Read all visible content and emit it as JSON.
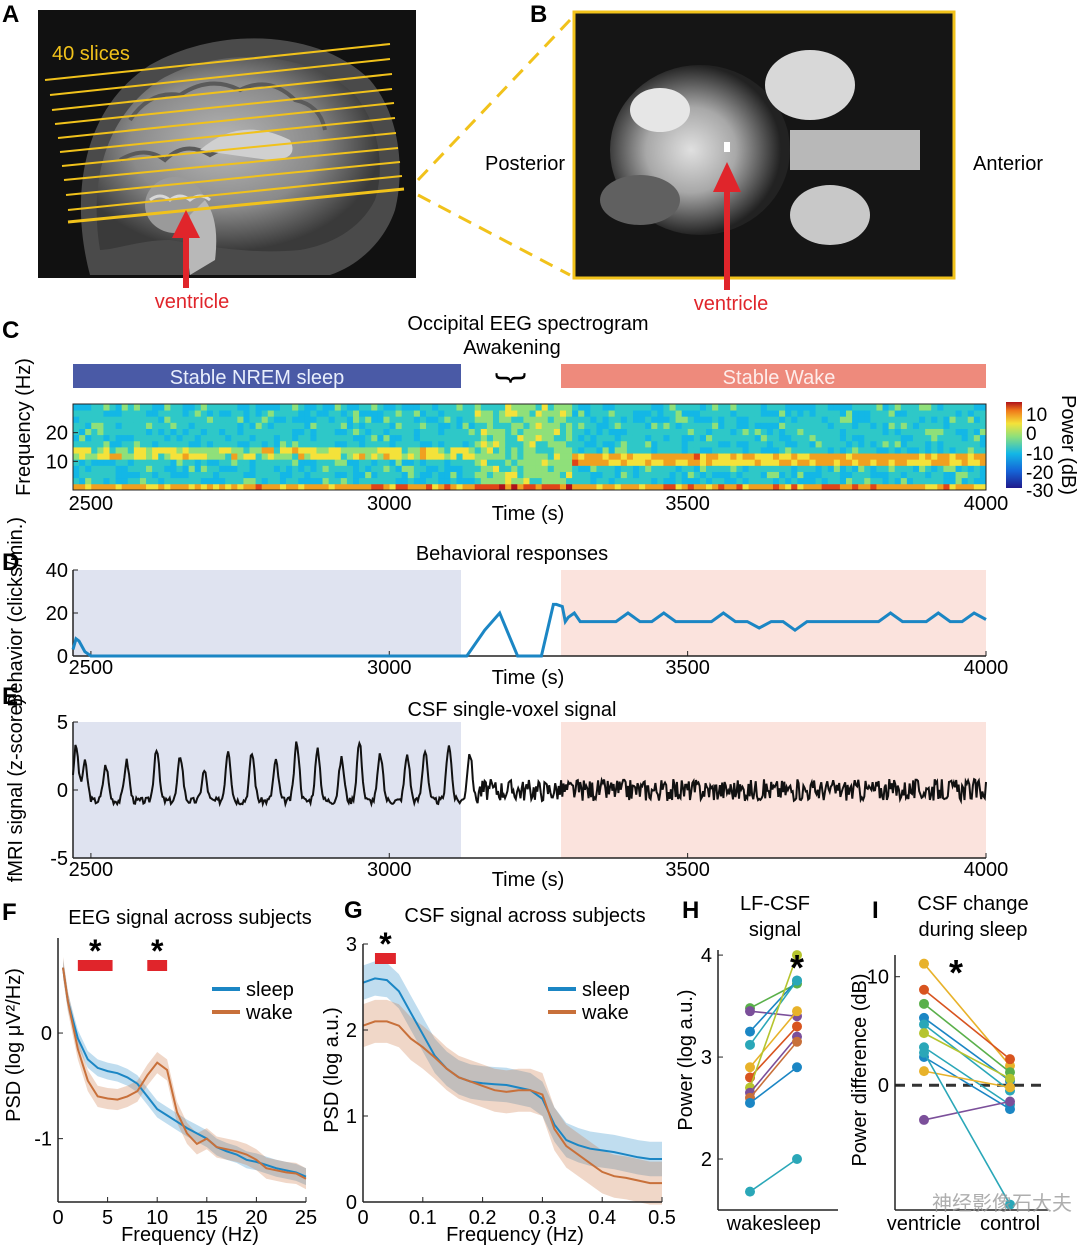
{
  "panel_a": {
    "letter": "A",
    "slices_label": "40 slices",
    "arrow_label": "ventricle",
    "colors": {
      "slices": "#f1c21b",
      "arrow": "#e0252b"
    }
  },
  "panel_b": {
    "letter": "B",
    "posterior_label": "Posterior",
    "anterior_label": "Anterior",
    "arrow_label": "ventricle"
  },
  "panel_c": {
    "letter": "C",
    "title": "Occipital EEG spectrogram",
    "awakening_label": "Awakening",
    "nrem_bar_label": "Stable NREM sleep",
    "wake_bar_label": "Stable Wake",
    "colors": {
      "nrem": "#4a5aa6",
      "wake": "#ee8a7c"
    },
    "ylabel": "Frequency (Hz)",
    "xlabel": "Time (s)",
    "colorbar_label": "Power (dB)",
    "colorbar_ticks": [
      "10",
      "0",
      "-10",
      "-20",
      "-30"
    ]
  },
  "panel_d": {
    "letter": "D",
    "title": "Behavioral responses",
    "ylabel": "Behavior (clicks/min.)",
    "xlabel": "Time (s)"
  },
  "panel_e": {
    "letter": "E",
    "title": "CSF single-voxel signal",
    "ylabel": "fMRI signal (z-score)",
    "xlabel": "Time (s)"
  },
  "panel_f": {
    "letter": "F",
    "title": "EEG signal across subjects",
    "ylabel": "PSD (log μV²/Hz)",
    "xlabel": "Frequency (Hz)"
  },
  "panel_g": {
    "letter": "G",
    "title": "CSF signal across subjects",
    "ylabel": "PSD (log a.u.)",
    "xlabel": "Frequency (Hz)"
  },
  "panel_h": {
    "letter": "H",
    "title_line1": "LF-CSF",
    "title_line2": "signal",
    "ylabel": "Power (log a.u.)"
  },
  "panel_i": {
    "letter": "I",
    "title_line1": "CSF change",
    "title_line2": "during sleep",
    "ylabel": "Power difference (dB)"
  },
  "significance_marker": "*",
  "watermark": "神经影像石大夫",
  "chart_data": [
    {
      "id": "C",
      "type": "heatmap",
      "title": "Occipital EEG spectrogram",
      "xlabel": "Time (s)",
      "ylabel": "Frequency (Hz)",
      "xlim": [
        2470,
        4000
      ],
      "ylim": [
        0,
        30
      ],
      "xticks": [
        2500,
        3000,
        3500,
        4000
      ],
      "yticks": [
        10,
        20
      ],
      "clim": [
        -30,
        10
      ],
      "bands": [
        {
          "name": "Stable NREM sleep",
          "range": [
            2470,
            3140
          ]
        },
        {
          "name": "Awakening",
          "range": [
            3140,
            3310
          ]
        },
        {
          "name": "Stable Wake",
          "range": [
            3310,
            4000
          ]
        }
      ]
    },
    {
      "id": "D",
      "type": "line",
      "title": "Behavioral responses",
      "xlabel": "Time (s)",
      "ylabel": "Behavior (clicks/min.)",
      "xlim": [
        2470,
        4000
      ],
      "ylim": [
        0,
        40
      ],
      "xticks": [
        2500,
        3000,
        3500,
        4000
      ],
      "yticks": [
        0,
        20,
        40
      ],
      "color": "#1b86c4",
      "x": [
        2470,
        2475,
        2480,
        2490,
        2500,
        2520,
        2600,
        2700,
        2800,
        2900,
        3000,
        3100,
        3130,
        3160,
        3185,
        3200,
        3215,
        3230,
        3255,
        3275,
        3280,
        3290,
        3295,
        3300,
        3310,
        3320,
        3340,
        3360,
        3380,
        3400,
        3420,
        3440,
        3460,
        3480,
        3500,
        3520,
        3540,
        3560,
        3580,
        3600,
        3620,
        3640,
        3660,
        3680,
        3700,
        3720,
        3740,
        3760,
        3780,
        3800,
        3820,
        3840,
        3860,
        3880,
        3900,
        3920,
        3940,
        3960,
        3980,
        4000
      ],
      "y": [
        3,
        8,
        7,
        2,
        0,
        0,
        0,
        0,
        0,
        0,
        0,
        0,
        0,
        12,
        20,
        10,
        0,
        0,
        0,
        24,
        24,
        23,
        16,
        18,
        20,
        16,
        16,
        16,
        16,
        20,
        16,
        16,
        20,
        16,
        16,
        16,
        16,
        20,
        16,
        16,
        13,
        16,
        16,
        12,
        16,
        16,
        16,
        16,
        16,
        16,
        16,
        20,
        16,
        16,
        16,
        20,
        16,
        16,
        20,
        17
      ]
    },
    {
      "id": "E",
      "type": "line",
      "title": "CSF single-voxel signal",
      "xlabel": "Time (s)",
      "ylabel": "fMRI signal (z-score)",
      "xlim": [
        2470,
        4000
      ],
      "ylim": [
        -5,
        5
      ],
      "xticks": [
        2500,
        3000,
        3500,
        4000
      ],
      "yticks": [
        -5,
        0,
        5
      ],
      "color": "#111111",
      "peaks_x": [
        2475,
        2490,
        2525,
        2560,
        2610,
        2650,
        2690,
        2730,
        2770,
        2810,
        2845,
        2880,
        2920,
        2950,
        2985,
        3030,
        3060,
        3100,
        3135
      ],
      "peaks_y": [
        3.2,
        2.0,
        1.8,
        2.1,
        3.1,
        2.5,
        1.4,
        3.0,
        2.7,
        2.1,
        3.5,
        2.9,
        2.3,
        3.5,
        2.6,
        2.6,
        3.0,
        3.4,
        2.7
      ],
      "wake_range": [
        3150,
        4000
      ],
      "wake_amplitude": 0.8
    },
    {
      "id": "F",
      "type": "line",
      "title": "EEG signal across subjects",
      "xlabel": "Frequency (Hz)",
      "ylabel": "PSD (log μV²/Hz)",
      "xlim": [
        0,
        25
      ],
      "ylim": [
        -1.6,
        0.9
      ],
      "xticks": [
        0,
        5,
        10,
        15,
        20,
        25
      ],
      "yticks": [
        -1,
        0
      ],
      "legend": "top-right",
      "x": [
        0.5,
        1,
        2,
        3,
        4,
        5,
        6,
        7,
        8,
        9,
        10,
        11,
        12,
        13,
        14,
        15,
        16,
        17,
        18,
        19,
        20,
        21,
        22,
        23,
        24,
        25
      ],
      "series": [
        {
          "name": "sleep",
          "color": "#1b86c4",
          "values": [
            0.62,
            0.3,
            -0.05,
            -0.25,
            -0.33,
            -0.36,
            -0.38,
            -0.42,
            -0.48,
            -0.6,
            -0.72,
            -0.78,
            -0.84,
            -0.9,
            -0.95,
            -1.0,
            -1.08,
            -1.12,
            -1.15,
            -1.2,
            -1.22,
            -1.25,
            -1.28,
            -1.3,
            -1.32,
            -1.36
          ],
          "band": 0.08
        },
        {
          "name": "wake",
          "color": "#c8703a",
          "values": [
            0.62,
            0.3,
            -0.15,
            -0.45,
            -0.6,
            -0.62,
            -0.63,
            -0.6,
            -0.55,
            -0.4,
            -0.28,
            -0.35,
            -0.75,
            -0.95,
            -1.05,
            -1.0,
            -1.08,
            -1.1,
            -1.12,
            -1.15,
            -1.2,
            -1.28,
            -1.3,
            -1.32,
            -1.33,
            -1.38
          ],
          "band": 0.1
        }
      ],
      "significance": [
        [
          2,
          5.5
        ],
        [
          9,
          11
        ]
      ]
    },
    {
      "id": "G",
      "type": "line",
      "title": "CSF signal across subjects",
      "xlabel": "Frequency (Hz)",
      "ylabel": "PSD (log a.u.)",
      "xlim": [
        0,
        0.5
      ],
      "ylim": [
        0,
        3
      ],
      "xticks": [
        0,
        0.1,
        0.2,
        0.3,
        0.4,
        0.5
      ],
      "yticks": [
        0,
        1,
        2,
        3
      ],
      "legend": "top-right",
      "x": [
        0,
        0.02,
        0.04,
        0.06,
        0.08,
        0.1,
        0.12,
        0.14,
        0.16,
        0.18,
        0.2,
        0.22,
        0.24,
        0.26,
        0.28,
        0.3,
        0.32,
        0.34,
        0.36,
        0.38,
        0.4,
        0.42,
        0.44,
        0.46,
        0.48,
        0.5
      ],
      "series": [
        {
          "name": "sleep",
          "color": "#1b86c4",
          "values": [
            2.55,
            2.6,
            2.58,
            2.45,
            2.2,
            1.95,
            1.7,
            1.55,
            1.45,
            1.4,
            1.38,
            1.37,
            1.36,
            1.33,
            1.3,
            1.2,
            0.9,
            0.72,
            0.66,
            0.62,
            0.6,
            0.58,
            0.55,
            0.52,
            0.5,
            0.5
          ],
          "band": 0.2
        },
        {
          "name": "wake",
          "color": "#c8703a",
          "values": [
            2.05,
            2.1,
            2.1,
            2.05,
            1.9,
            1.8,
            1.68,
            1.55,
            1.45,
            1.4,
            1.35,
            1.3,
            1.28,
            1.3,
            1.3,
            1.25,
            0.85,
            0.65,
            0.55,
            0.45,
            0.35,
            0.3,
            0.28,
            0.25,
            0.22,
            0.22
          ],
          "band": 0.25
        }
      ],
      "significance": [
        [
          0.02,
          0.055
        ]
      ]
    },
    {
      "id": "H",
      "type": "scatter",
      "title": "LF-CSF signal",
      "ylabel": "Power (log a.u.)",
      "categories": [
        "wake",
        "sleep"
      ],
      "ylim": [
        1.5,
        4.05
      ],
      "yticks": [
        2,
        3,
        4
      ],
      "pairs": [
        {
          "wake": 3.48,
          "sleep": 3.72,
          "color": "#5ab04a"
        },
        {
          "wake": 3.45,
          "sleep": 3.4,
          "color": "#7b4f9a"
        },
        {
          "wake": 3.25,
          "sleep": 3.75,
          "color": "#1b86c4"
        },
        {
          "wake": 3.12,
          "sleep": 3.75,
          "color": "#2aa7b8"
        },
        {
          "wake": 2.9,
          "sleep": 3.45,
          "color": "#e8b22a"
        },
        {
          "wake": 2.8,
          "sleep": 3.3,
          "color": "#d8541f"
        },
        {
          "wake": 2.7,
          "sleep": 4.0,
          "color": "#b5c42e"
        },
        {
          "wake": 2.65,
          "sleep": 3.2,
          "color": "#7b4f9a"
        },
        {
          "wake": 2.6,
          "sleep": 3.15,
          "color": "#c8703a"
        },
        {
          "wake": 2.55,
          "sleep": 2.9,
          "color": "#1b86c4"
        },
        {
          "wake": 1.68,
          "sleep": 2.0,
          "color": "#2aa7b8"
        }
      ],
      "significance": "sleep"
    },
    {
      "id": "I",
      "type": "scatter",
      "title": "CSF change during sleep",
      "ylabel": "Power difference (dB)",
      "categories": [
        "ventricle",
        "control"
      ],
      "ylim": [
        -11.5,
        12
      ],
      "yticks": [
        0,
        10
      ],
      "pairs": [
        {
          "ventricle": 11.2,
          "control": 1.8,
          "color": "#e8b22a"
        },
        {
          "ventricle": 8.8,
          "control": 2.4,
          "color": "#d8541f"
        },
        {
          "ventricle": 7.5,
          "control": 1.2,
          "color": "#5ab04a"
        },
        {
          "ventricle": 6.2,
          "control": 0.4,
          "color": "#1b86c4"
        },
        {
          "ventricle": 5.6,
          "control": -0.5,
          "color": "#2aa7b8"
        },
        {
          "ventricle": 4.8,
          "control": 0.6,
          "color": "#b5c42e"
        },
        {
          "ventricle": 3.5,
          "control": -1.8,
          "color": "#2aa7b8"
        },
        {
          "ventricle": 2.6,
          "control": -2.2,
          "color": "#1b86c4"
        },
        {
          "ventricle": 1.3,
          "control": -0.2,
          "color": "#e8b22a"
        },
        {
          "ventricle": -3.2,
          "control": -1.5,
          "color": "#7b4f9a"
        },
        {
          "ventricle": 3.0,
          "control": -11.0,
          "color": "#2aa7b8"
        }
      ],
      "significance": "ventricle"
    }
  ]
}
